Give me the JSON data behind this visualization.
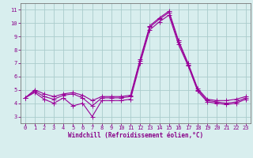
{
  "xlabel": "Windchill (Refroidissement éolien,°C)",
  "x": [
    0,
    1,
    2,
    3,
    4,
    5,
    6,
    7,
    8,
    9,
    10,
    11,
    12,
    13,
    14,
    15,
    16,
    17,
    18,
    19,
    20,
    21,
    22,
    23
  ],
  "y_main": [
    4.4,
    4.9,
    4.5,
    4.3,
    4.6,
    4.7,
    4.4,
    3.8,
    4.4,
    4.4,
    4.4,
    4.5,
    7.2,
    9.7,
    10.3,
    10.8,
    8.6,
    6.9,
    5.0,
    4.2,
    4.1,
    4.0,
    4.1,
    4.4
  ],
  "y_max": [
    4.4,
    5.0,
    4.7,
    4.5,
    4.7,
    4.8,
    4.6,
    4.2,
    4.5,
    4.5,
    4.5,
    4.6,
    7.3,
    9.8,
    10.4,
    10.9,
    8.7,
    7.0,
    5.1,
    4.3,
    4.2,
    4.2,
    4.3,
    4.5
  ],
  "y_min": [
    4.4,
    4.8,
    4.3,
    4.0,
    4.4,
    3.8,
    4.0,
    3.0,
    4.2,
    4.2,
    4.2,
    4.3,
    7.0,
    9.5,
    10.1,
    10.6,
    8.4,
    6.8,
    4.9,
    4.1,
    4.0,
    3.9,
    4.0,
    4.3
  ],
  "line_color": "#990099",
  "marker": "+",
  "markersize": 4,
  "linewidth": 0.8,
  "bg_color": "#d8eeee",
  "grid_color": "#aacccc",
  "axis_color": "#777777",
  "tick_color": "#880088",
  "label_color": "#880088",
  "xlim": [
    -0.5,
    23.5
  ],
  "ylim": [
    2.5,
    11.5
  ],
  "yticks": [
    3,
    4,
    5,
    6,
    7,
    8,
    9,
    10,
    11
  ],
  "xticks": [
    0,
    1,
    2,
    3,
    4,
    5,
    6,
    7,
    8,
    9,
    10,
    11,
    12,
    13,
    14,
    15,
    16,
    17,
    18,
    19,
    20,
    21,
    22,
    23
  ],
  "tick_fontsize": 5.0,
  "label_fontsize": 5.5
}
